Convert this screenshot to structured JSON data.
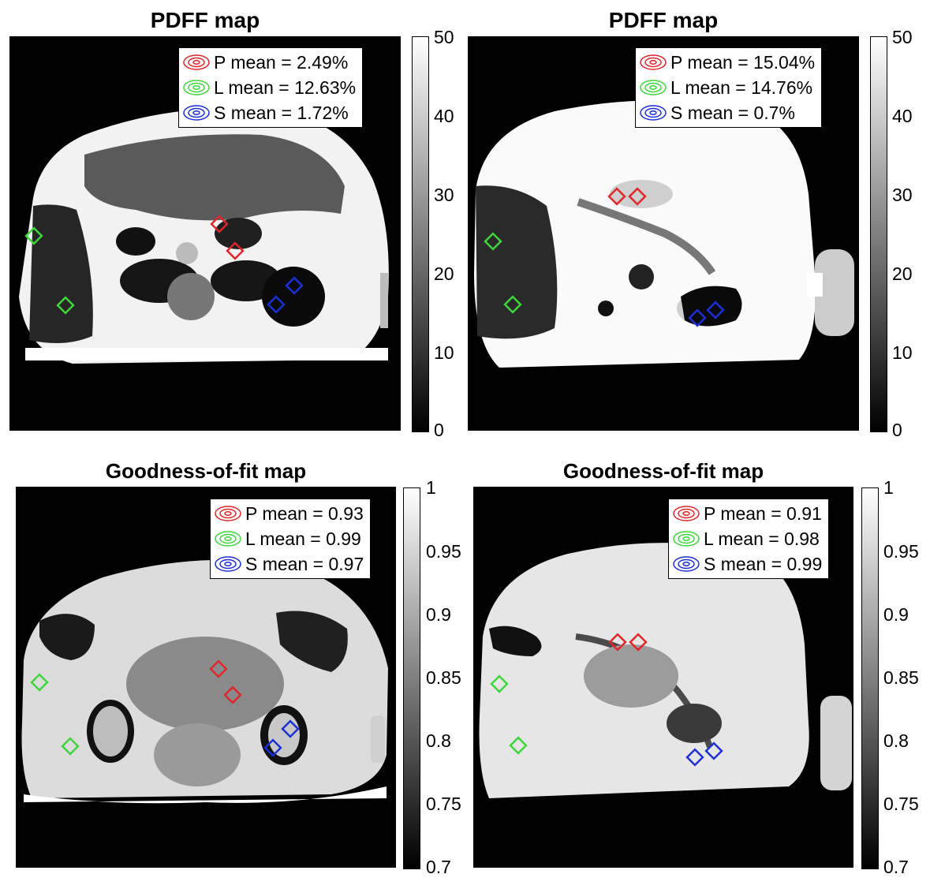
{
  "panels": [
    {
      "title": "PDFF map",
      "legend": [
        {
          "label": "P mean = 2.49%",
          "color": "#e0262b"
        },
        {
          "label": "L mean = 12.63%",
          "color": "#3ed63c"
        },
        {
          "label": "S mean = 1.72%",
          "color": "#1c2fd6"
        }
      ],
      "colorbar": {
        "ticks": [
          "50",
          "40",
          "30",
          "20",
          "10",
          "0"
        ],
        "min": 0,
        "max": 50
      }
    },
    {
      "title": "PDFF map",
      "legend": [
        {
          "label": "P mean = 15.04%",
          "color": "#e0262b"
        },
        {
          "label": "L mean = 14.76%",
          "color": "#3ed63c"
        },
        {
          "label": "S mean = 0.7%",
          "color": "#1c2fd6"
        }
      ],
      "colorbar": {
        "ticks": [
          "50",
          "40",
          "30",
          "20",
          "10",
          "0"
        ],
        "min": 0,
        "max": 50
      }
    },
    {
      "title": "Goodness-of-fit map",
      "legend": [
        {
          "label": "P mean = 0.93",
          "color": "#e0262b"
        },
        {
          "label": "L mean = 0.99",
          "color": "#3ed63c"
        },
        {
          "label": "S mean = 0.97",
          "color": "#1c2fd6"
        }
      ],
      "colorbar": {
        "ticks": [
          "1",
          "0.95",
          "0.9",
          "0.85",
          "0.8",
          "0.75",
          "0.7"
        ],
        "min": 0.7,
        "max": 1
      }
    },
    {
      "title": "Goodness-of-fit map",
      "legend": [
        {
          "label": "P mean = 0.91",
          "color": "#e0262b"
        },
        {
          "label": "L mean = 0.98",
          "color": "#3ed63c"
        },
        {
          "label": "S mean = 0.99",
          "color": "#1c2fd6"
        }
      ],
      "colorbar": {
        "ticks": [
          "1",
          "0.95",
          "0.9",
          "0.85",
          "0.8",
          "0.75",
          "0.7"
        ],
        "min": 0.7,
        "max": 1
      }
    }
  ]
}
